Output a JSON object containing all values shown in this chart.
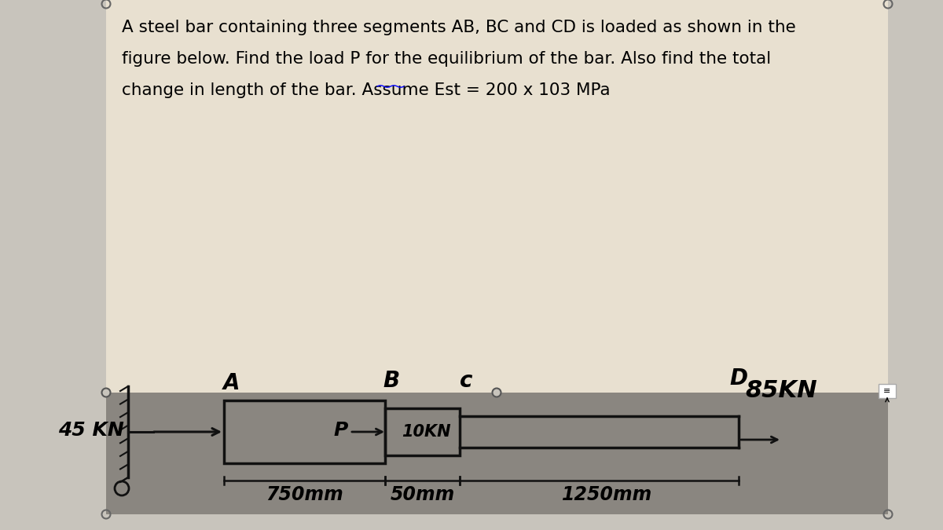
{
  "title_line1": "A steel bar containing three segments AB, BC and CD is loaded as shown in the",
  "title_line2": "figure below. Find the load P for the equilibrium of the bar. Also find the total",
  "title_line3": "change in length of the bar. Assume Est = 200 x 103 MPa",
  "bg_outer": "#c8c4bc",
  "bg_title": "#e8e0d0",
  "bg_diagram": "#8a8680",
  "label_A": "A",
  "label_B": "B",
  "label_C": "c",
  "label_D": "D",
  "force_left": "45 KN",
  "force_right": "85KN",
  "force_P": "P",
  "force_10kn": "10KN",
  "dim_AB": "750mm",
  "dim_BC": "50mm",
  "dim_CD": "1250mm",
  "draw_color": "#111111",
  "title_fontsize": 15.5,
  "label_fontsize": 20,
  "force_fontsize": 18,
  "dim_fontsize": 17
}
